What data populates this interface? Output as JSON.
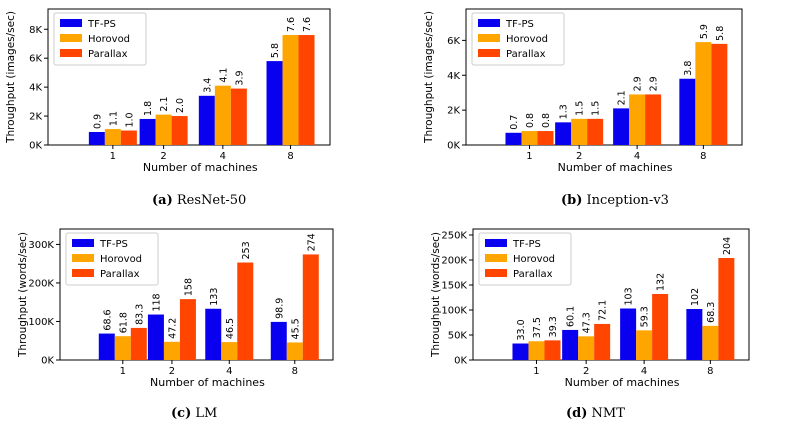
{
  "colors": {
    "TF-PS": "#0a00f0",
    "Horovod": "#ffa500",
    "Parallax": "#ff4500"
  },
  "chart_data": [
    {
      "type": "bar",
      "id": "a",
      "caption_label": "(a)",
      "caption_text": "ResNet-50",
      "xlabel": "Number of machines",
      "ylabel": "Throughput (images/sec)",
      "categories": [
        "1",
        "2",
        "4",
        "8"
      ],
      "ylim": [
        0,
        9400
      ],
      "yticks": [
        0,
        2000,
        4000,
        6000,
        8000
      ],
      "ytick_labels": [
        "0K",
        "2K",
        "4K",
        "6K",
        "8K"
      ],
      "series": [
        {
          "name": "TF-PS",
          "values": [
            900,
            1800,
            3400,
            5800
          ],
          "labels": [
            "0.9",
            "1.8",
            "3.4",
            "5.8"
          ]
        },
        {
          "name": "Horovod",
          "values": [
            1100,
            2100,
            4100,
            7600
          ],
          "labels": [
            "1.1",
            "2.1",
            "4.1",
            "7.6"
          ]
        },
        {
          "name": "Parallax",
          "values": [
            1000,
            2000,
            3900,
            7600
          ],
          "labels": [
            "1.0",
            "2.0",
            "3.9",
            "7.6"
          ]
        }
      ],
      "legend": "top-left"
    },
    {
      "type": "bar",
      "id": "b",
      "caption_label": "(b)",
      "caption_text": "Inception-v3",
      "xlabel": "Number of machines",
      "ylabel": "Throughput (images/sec)",
      "categories": [
        "1",
        "2",
        "4",
        "8"
      ],
      "ylim": [
        0,
        7800
      ],
      "yticks": [
        0,
        2000,
        4000,
        6000
      ],
      "ytick_labels": [
        "0K",
        "2K",
        "4K",
        "6K"
      ],
      "series": [
        {
          "name": "TF-PS",
          "values": [
            700,
            1300,
            2100,
            3800
          ],
          "labels": [
            "0.7",
            "1.3",
            "2.1",
            "3.8"
          ]
        },
        {
          "name": "Horovod",
          "values": [
            800,
            1500,
            2900,
            5900
          ],
          "labels": [
            "0.8",
            "1.5",
            "2.9",
            "5.9"
          ]
        },
        {
          "name": "Parallax",
          "values": [
            800,
            1500,
            2900,
            5800
          ],
          "labels": [
            "0.8",
            "1.5",
            "2.9",
            "5.8"
          ]
        }
      ],
      "legend": "top-left"
    },
    {
      "type": "bar",
      "id": "c",
      "caption_label": "(c)",
      "caption_text": "LM",
      "xlabel": "Number of machines",
      "ylabel": "Throughput (words/sec)",
      "categories": [
        "1",
        "2",
        "4",
        "8"
      ],
      "ylim": [
        0,
        340000
      ],
      "yticks": [
        0,
        100000,
        200000,
        300000
      ],
      "ytick_labels": [
        "0K",
        "100K",
        "200K",
        "300K"
      ],
      "series": [
        {
          "name": "TF-PS",
          "values": [
            68600,
            118000,
            133000,
            98900
          ],
          "labels": [
            "68.6",
            "118",
            "133",
            "98.9"
          ]
        },
        {
          "name": "Horovod",
          "values": [
            61800,
            47200,
            46500,
            45500
          ],
          "labels": [
            "61.8",
            "47.2",
            "46.5",
            "45.5"
          ]
        },
        {
          "name": "Parallax",
          "values": [
            83300,
            158000,
            253000,
            274000
          ],
          "labels": [
            "83.3",
            "158",
            "253",
            "274"
          ]
        }
      ],
      "legend": "top-left"
    },
    {
      "type": "bar",
      "id": "d",
      "caption_label": "(d)",
      "caption_text": "NMT",
      "xlabel": "Number of machines",
      "ylabel": "Throughput (words/sec)",
      "categories": [
        "1",
        "2",
        "4",
        "8"
      ],
      "ylim": [
        0,
        262000
      ],
      "yticks": [
        0,
        50000,
        100000,
        150000,
        200000,
        250000
      ],
      "ytick_labels": [
        "0K",
        "50K",
        "100K",
        "150K",
        "200K",
        "250K"
      ],
      "series": [
        {
          "name": "TF-PS",
          "values": [
            33000,
            60100,
            103000,
            102000
          ],
          "labels": [
            "33.0",
            "60.1",
            "103",
            "102"
          ]
        },
        {
          "name": "Horovod",
          "values": [
            37500,
            47300,
            59300,
            68300
          ],
          "labels": [
            "37.5",
            "47.3",
            "59.3",
            "68.3"
          ]
        },
        {
          "name": "Parallax",
          "values": [
            39300,
            72100,
            132000,
            204000
          ],
          "labels": [
            "39.3",
            "72.1",
            "132",
            "204"
          ]
        }
      ],
      "legend": "top-left"
    }
  ]
}
